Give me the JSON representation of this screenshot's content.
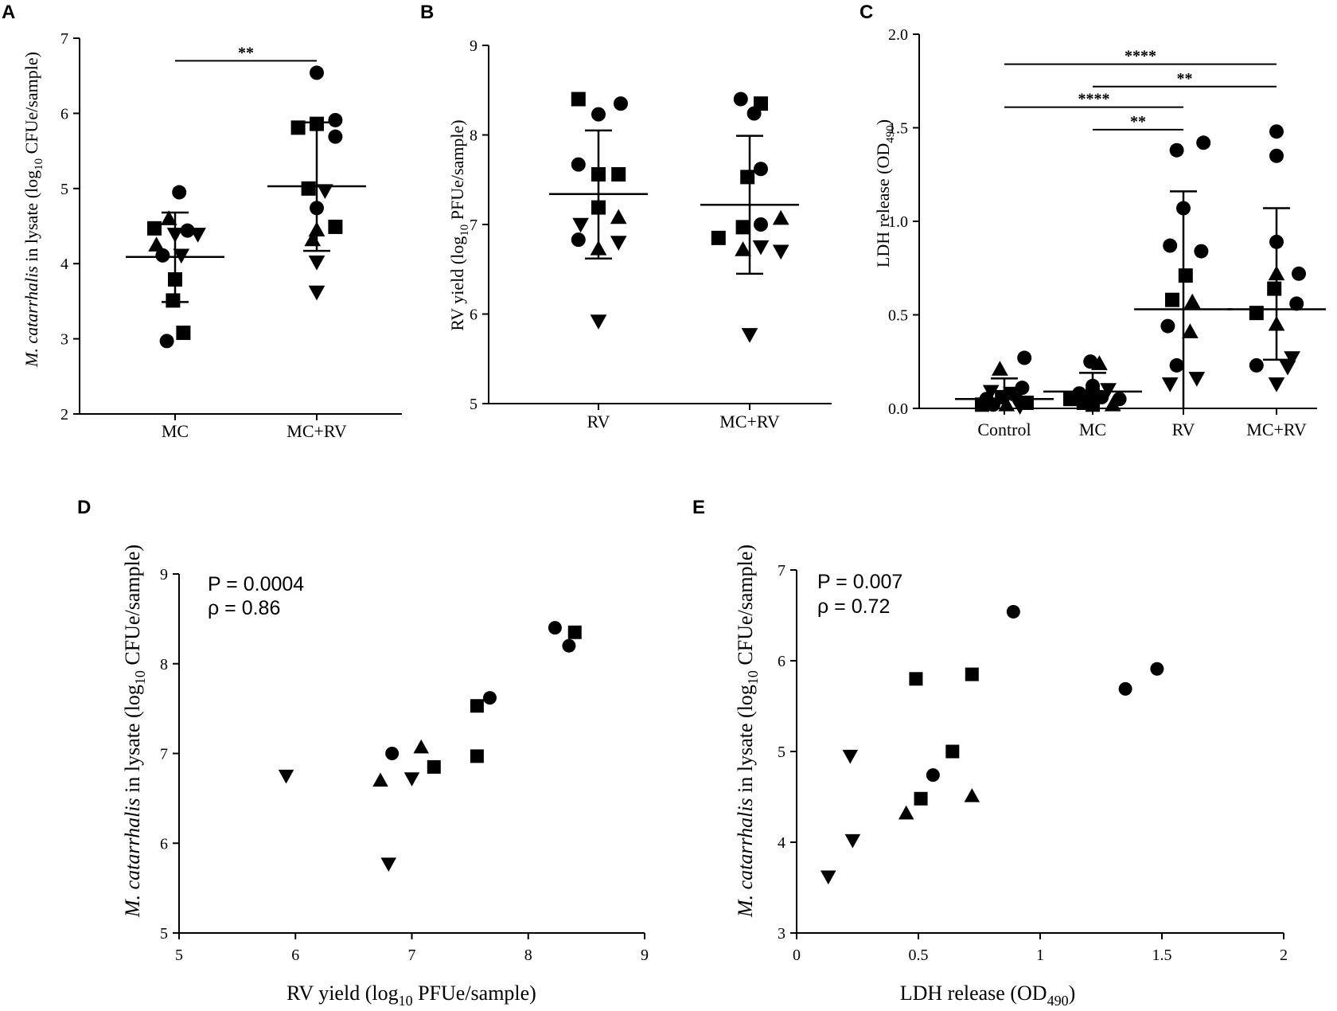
{
  "panels": {
    "A": {
      "letter": "A",
      "ylabel_pre": "M. catarrhalis",
      "ylabel_post": " in lysate (log",
      "ylabel_sub": "10",
      "ylabel_end": " CFUe/sample)"
    },
    "B": {
      "letter": "B",
      "ylabel_pre": "RV yield (log",
      "ylabel_sub": "10",
      "ylabel_end": " PFUe/sample)"
    },
    "C": {
      "letter": "C",
      "ylabel_pre": "LDH release (OD",
      "ylabel_sub": "490",
      "ylabel_end": ")"
    },
    "D": {
      "letter": "D",
      "ylabel_pre": "M. catarrhalis",
      "ylabel_post": " in lysate (log",
      "ylabel_sub": "10",
      "ylabel_end": " CFUe/sample)",
      "xlabel_pre": "RV yield (log",
      "xlabel_sub": "10",
      "xlabel_end": " PFUe/sample)",
      "stat_p": "P = 0.0004",
      "stat_rho": "ρ = 0.86"
    },
    "E": {
      "letter": "E",
      "ylabel_pre": "M. catarrhalis",
      "ylabel_post": " in lysate (log",
      "ylabel_sub": "10",
      "ylabel_end": " CFUe/sample)",
      "xlabel_pre": "LDH release (OD",
      "xlabel_sub": "490",
      "xlabel_end": ")",
      "stat_p": "P = 0.007",
      "stat_rho": "ρ = 0.72"
    }
  },
  "chart_data": [
    {
      "id": "A",
      "type": "scatter",
      "subtype": "dot-plot",
      "title": "",
      "xlabel": "",
      "ylabel": "M. catarrhalis in lysate (log10 CFUe/sample)",
      "ylim": [
        2,
        7
      ],
      "yticks": [
        2,
        3,
        4,
        5,
        6,
        7
      ],
      "categories": [
        "MC",
        "MC+RV"
      ],
      "groups": [
        {
          "category": "MC",
          "mean": 4.09,
          "sd_low": 3.49,
          "sd_high": 4.68,
          "points": [
            {
              "v": 4.95,
              "s": "circle",
              "o": 0.2
            },
            {
              "v": 4.6,
              "s": "triangle",
              "o": -0.3
            },
            {
              "v": 4.47,
              "s": "square",
              "o": -1.0
            },
            {
              "v": 4.44,
              "s": "circle",
              "o": 0.6
            },
            {
              "v": 4.39,
              "s": "tridown",
              "o": 1.1
            },
            {
              "v": 4.39,
              "s": "tridown",
              "o": 0.0
            },
            {
              "v": 4.25,
              "s": "triangle",
              "o": -0.9
            },
            {
              "v": 4.11,
              "s": "circle",
              "o": -0.6
            },
            {
              "v": 4.11,
              "s": "tridown",
              "o": 0.3
            },
            {
              "v": 3.79,
              "s": "square",
              "o": 0.0
            },
            {
              "v": 3.51,
              "s": "square",
              "o": -0.1
            },
            {
              "v": 3.08,
              "s": "square",
              "o": 0.4
            },
            {
              "v": 2.97,
              "s": "circle",
              "o": -0.4
            }
          ]
        },
        {
          "category": "MC+RV",
          "mean": 5.03,
          "sd_low": 4.17,
          "sd_high": 5.88,
          "points": [
            {
              "v": 6.54,
              "s": "circle",
              "o": 0.0
            },
            {
              "v": 5.91,
              "s": "circle",
              "o": 0.9
            },
            {
              "v": 5.86,
              "s": "square",
              "o": 0.0
            },
            {
              "v": 5.81,
              "s": "square",
              "o": -0.9
            },
            {
              "v": 5.69,
              "s": "circle",
              "o": 0.9
            },
            {
              "v": 5.0,
              "s": "square",
              "o": -0.4
            },
            {
              "v": 4.97,
              "s": "tridown",
              "o": 0.4
            },
            {
              "v": 4.74,
              "s": "circle",
              "o": 0.0
            },
            {
              "v": 4.49,
              "s": "square",
              "o": 0.9
            },
            {
              "v": 4.45,
              "s": "triangle",
              "o": 0.0
            },
            {
              "v": 4.32,
              "s": "triangle",
              "o": -0.2
            },
            {
              "v": 4.02,
              "s": "tridown",
              "o": 0.0
            },
            {
              "v": 3.62,
              "s": "tridown",
              "o": 0.0
            }
          ]
        }
      ],
      "significance": [
        {
          "from": "MC",
          "to": "MC+RV",
          "label": "**",
          "y": 6.7
        }
      ]
    },
    {
      "id": "B",
      "type": "scatter",
      "subtype": "dot-plot",
      "title": "",
      "xlabel": "",
      "ylabel": "RV yield (log10 PFUe/sample)",
      "ylim": [
        5,
        9
      ],
      "yticks": [
        5,
        6,
        7,
        8,
        9
      ],
      "categories": [
        "RV",
        "MC+RV"
      ],
      "groups": [
        {
          "category": "RV",
          "mean": 7.34,
          "sd_low": 6.62,
          "sd_high": 8.05,
          "points": [
            {
              "v": 8.4,
              "s": "square",
              "o": -0.9
            },
            {
              "v": 8.35,
              "s": "circle",
              "o": 1.0
            },
            {
              "v": 8.23,
              "s": "circle",
              "o": 0.0
            },
            {
              "v": 7.67,
              "s": "circle",
              "o": -0.9
            },
            {
              "v": 7.56,
              "s": "square",
              "o": 0.0
            },
            {
              "v": 7.56,
              "s": "square",
              "o": 0.9
            },
            {
              "v": 7.19,
              "s": "square",
              "o": 0.0
            },
            {
              "v": 7.08,
              "s": "triangle",
              "o": 0.9
            },
            {
              "v": 7.0,
              "s": "tridown",
              "o": -0.8
            },
            {
              "v": 6.83,
              "s": "circle",
              "o": -0.9
            },
            {
              "v": 6.8,
              "s": "tridown",
              "o": 0.9
            },
            {
              "v": 6.73,
              "s": "triangle",
              "o": 0.0
            },
            {
              "v": 5.92,
              "s": "tridown",
              "o": 0.0
            }
          ]
        },
        {
          "category": "MC+RV",
          "mean": 7.22,
          "sd_low": 6.45,
          "sd_high": 7.99,
          "points": [
            {
              "v": 8.4,
              "s": "circle",
              "o": -0.4
            },
            {
              "v": 8.35,
              "s": "square",
              "o": 0.5
            },
            {
              "v": 8.24,
              "s": "circle",
              "o": 0.2
            },
            {
              "v": 7.62,
              "s": "circle",
              "o": 0.5
            },
            {
              "v": 7.53,
              "s": "square",
              "o": -0.1
            },
            {
              "v": 7.07,
              "s": "triangle",
              "o": 1.4
            },
            {
              "v": 7.0,
              "s": "circle",
              "o": 0.5
            },
            {
              "v": 6.97,
              "s": "square",
              "o": -0.3
            },
            {
              "v": 6.85,
              "s": "square",
              "o": -1.4
            },
            {
              "v": 6.75,
              "s": "tridown",
              "o": 0.5
            },
            {
              "v": 6.72,
              "s": "triangle",
              "o": -0.3
            },
            {
              "v": 6.7,
              "s": "tridown",
              "o": 1.4
            },
            {
              "v": 5.77,
              "s": "tridown",
              "o": 0.0
            }
          ]
        }
      ]
    },
    {
      "id": "C",
      "type": "scatter",
      "subtype": "dot-plot",
      "title": "",
      "xlabel": "",
      "ylabel": "LDH release (OD490)",
      "ylim": [
        0,
        2
      ],
      "yticks": [
        0,
        0.5,
        1.0,
        1.5,
        2.0
      ],
      "ytick_labels": [
        "0.0",
        "0.5",
        "1.0",
        "1.5",
        "2.0"
      ],
      "categories": [
        "Control",
        "MC",
        "RV",
        "MC+RV"
      ],
      "groups": [
        {
          "category": "Control",
          "mean": 0.05,
          "sd_low": 0.0,
          "sd_high": 0.16,
          "points": [
            {
              "v": 0.27,
              "s": "circle",
              "o": 0.9
            },
            {
              "v": 0.21,
              "s": "triangle",
              "o": -0.2
            },
            {
              "v": 0.11,
              "s": "circle",
              "o": 0.8
            },
            {
              "v": 0.09,
              "s": "tridown",
              "o": -0.6
            },
            {
              "v": 0.08,
              "s": "tridown",
              "o": 0.3
            },
            {
              "v": 0.06,
              "s": "square",
              "o": -0.1
            },
            {
              "v": 0.05,
              "s": "circle",
              "o": -0.8
            },
            {
              "v": 0.05,
              "s": "tridown",
              "o": 0.5
            },
            {
              "v": 0.03,
              "s": "square",
              "o": 1.0
            },
            {
              "v": 0.02,
              "s": "circle",
              "o": -0.5
            },
            {
              "v": 0.02,
              "s": "triangle",
              "o": 0.1
            },
            {
              "v": 0.02,
              "s": "square",
              "o": -1.0
            },
            {
              "v": 0.01,
              "s": "tridown",
              "o": 0.7
            }
          ]
        },
        {
          "category": "MC",
          "mean": 0.09,
          "sd_low": 0.0,
          "sd_high": 0.19,
          "points": [
            {
              "v": 0.25,
              "s": "circle",
              "o": -0.1
            },
            {
              "v": 0.24,
              "s": "triangle",
              "o": 0.3
            },
            {
              "v": 0.12,
              "s": "circle",
              "o": 0.0
            },
            {
              "v": 0.1,
              "s": "tridown",
              "o": 0.7
            },
            {
              "v": 0.08,
              "s": "circle",
              "o": -0.6
            },
            {
              "v": 0.07,
              "s": "square",
              "o": 0.0
            },
            {
              "v": 0.06,
              "s": "circle",
              "o": 0.4
            },
            {
              "v": 0.05,
              "s": "square",
              "o": -1.0
            },
            {
              "v": 0.05,
              "s": "circle",
              "o": 1.2
            },
            {
              "v": 0.04,
              "s": "tridown",
              "o": 0.2
            },
            {
              "v": 0.03,
              "s": "square",
              "o": -0.4
            },
            {
              "v": 0.02,
              "s": "square",
              "o": 0.0
            },
            {
              "v": 0.02,
              "s": "triangle",
              "o": 0.9
            }
          ]
        },
        {
          "category": "RV",
          "mean": 0.53,
          "sd_low": 0.0,
          "sd_high": 1.16,
          "points": [
            {
              "v": 1.42,
              "s": "circle",
              "o": 0.9
            },
            {
              "v": 1.38,
              "s": "circle",
              "o": -0.3
            },
            {
              "v": 1.07,
              "s": "circle",
              "o": 0.0
            },
            {
              "v": 0.87,
              "s": "circle",
              "o": -0.6
            },
            {
              "v": 0.84,
              "s": "circle",
              "o": 0.8
            },
            {
              "v": 0.71,
              "s": "square",
              "o": 0.1
            },
            {
              "v": 0.58,
              "s": "square",
              "o": -0.5
            },
            {
              "v": 0.57,
              "s": "triangle",
              "o": 0.4
            },
            {
              "v": 0.44,
              "s": "circle",
              "o": -0.7
            },
            {
              "v": 0.41,
              "s": "triangle",
              "o": 0.3
            },
            {
              "v": 0.23,
              "s": "circle",
              "o": -0.3
            },
            {
              "v": 0.16,
              "s": "tridown",
              "o": 0.6
            },
            {
              "v": 0.13,
              "s": "tridown",
              "o": -0.6
            }
          ]
        },
        {
          "category": "MC+RV",
          "mean": 0.53,
          "sd_low": 0.26,
          "sd_high": 1.07,
          "points": [
            {
              "v": 1.48,
              "s": "circle",
              "o": 0.0
            },
            {
              "v": 1.35,
              "s": "circle",
              "o": 0.0
            },
            {
              "v": 0.89,
              "s": "circle",
              "o": 0.0
            },
            {
              "v": 0.72,
              "s": "circle",
              "o": 1.0
            },
            {
              "v": 0.72,
              "s": "triangle",
              "o": 0.0
            },
            {
              "v": 0.64,
              "s": "square",
              "o": -0.1
            },
            {
              "v": 0.56,
              "s": "circle",
              "o": 0.9
            },
            {
              "v": 0.51,
              "s": "square",
              "o": -0.9
            },
            {
              "v": 0.45,
              "s": "triangle",
              "o": 0.0
            },
            {
              "v": 0.23,
              "s": "circle",
              "o": -0.9
            },
            {
              "v": 0.22,
              "s": "tridown",
              "o": 0.5
            },
            {
              "v": 0.13,
              "s": "tridown",
              "o": 0.0
            },
            {
              "v": 0.27,
              "s": "tridown",
              "o": 0.7
            }
          ]
        }
      ],
      "significance": [
        {
          "from": "Control",
          "to": "MC+RV",
          "label": "****",
          "y": 1.84
        },
        {
          "from": "MC",
          "to": "MC+RV",
          "label": "**",
          "y": 1.72
        },
        {
          "from": "Control",
          "to": "RV",
          "label": "****",
          "y": 1.61
        },
        {
          "from": "MC",
          "to": "RV",
          "label": "**",
          "y": 1.49
        }
      ]
    },
    {
      "id": "D",
      "type": "scatter",
      "title": "",
      "xlabel": "RV yield (log10 PFUe/sample)",
      "ylabel": "M. catarrhalis in lysate (log10 CFUe/sample)",
      "xlim": [
        5,
        9
      ],
      "ylim": [
        5,
        9
      ],
      "xticks": [
        5,
        6,
        7,
        8,
        9
      ],
      "yticks": [
        5,
        6,
        7,
        8,
        9
      ],
      "points": [
        {
          "x": 5.92,
          "y": 6.75,
          "s": "tridown"
        },
        {
          "x": 6.73,
          "y": 6.7,
          "s": "triangle"
        },
        {
          "x": 6.8,
          "y": 5.77,
          "s": "tridown"
        },
        {
          "x": 6.83,
          "y": 7.0,
          "s": "circle"
        },
        {
          "x": 7.0,
          "y": 6.72,
          "s": "tridown"
        },
        {
          "x": 7.08,
          "y": 7.07,
          "s": "triangle"
        },
        {
          "x": 7.19,
          "y": 6.85,
          "s": "square"
        },
        {
          "x": 7.56,
          "y": 6.97,
          "s": "square"
        },
        {
          "x": 7.56,
          "y": 7.53,
          "s": "square"
        },
        {
          "x": 7.67,
          "y": 7.62,
          "s": "circle"
        },
        {
          "x": 8.23,
          "y": 8.4,
          "s": "circle"
        },
        {
          "x": 8.35,
          "y": 8.2,
          "s": "circle"
        },
        {
          "x": 8.4,
          "y": 8.35,
          "s": "square"
        }
      ],
      "annotations": [
        "P = 0.0004",
        "ρ = 0.86"
      ]
    },
    {
      "id": "E",
      "type": "scatter",
      "title": "",
      "xlabel": "LDH release (OD490)",
      "ylabel": "M. catarrhalis in lysate (log10 CFUe/sample)",
      "xlim": [
        0,
        2
      ],
      "ylim": [
        3,
        7
      ],
      "xticks": [
        0,
        0.5,
        1,
        1.5,
        2
      ],
      "yticks": [
        3,
        4,
        5,
        6,
        7
      ],
      "points": [
        {
          "x": 0.13,
          "y": 3.62,
          "s": "tridown"
        },
        {
          "x": 0.22,
          "y": 4.95,
          "s": "tridown"
        },
        {
          "x": 0.23,
          "y": 4.02,
          "s": "tridown"
        },
        {
          "x": 0.45,
          "y": 4.32,
          "s": "triangle"
        },
        {
          "x": 0.49,
          "y": 5.8,
          "s": "square"
        },
        {
          "x": 0.51,
          "y": 4.48,
          "s": "square"
        },
        {
          "x": 0.56,
          "y": 4.74,
          "s": "circle"
        },
        {
          "x": 0.64,
          "y": 5.0,
          "s": "square"
        },
        {
          "x": 0.72,
          "y": 5.85,
          "s": "square"
        },
        {
          "x": 0.72,
          "y": 4.51,
          "s": "triangle"
        },
        {
          "x": 0.89,
          "y": 6.54,
          "s": "circle"
        },
        {
          "x": 1.35,
          "y": 5.69,
          "s": "circle"
        },
        {
          "x": 1.48,
          "y": 5.91,
          "s": "circle"
        }
      ],
      "annotations": [
        "P = 0.007",
        "ρ = 0.72"
      ]
    }
  ]
}
